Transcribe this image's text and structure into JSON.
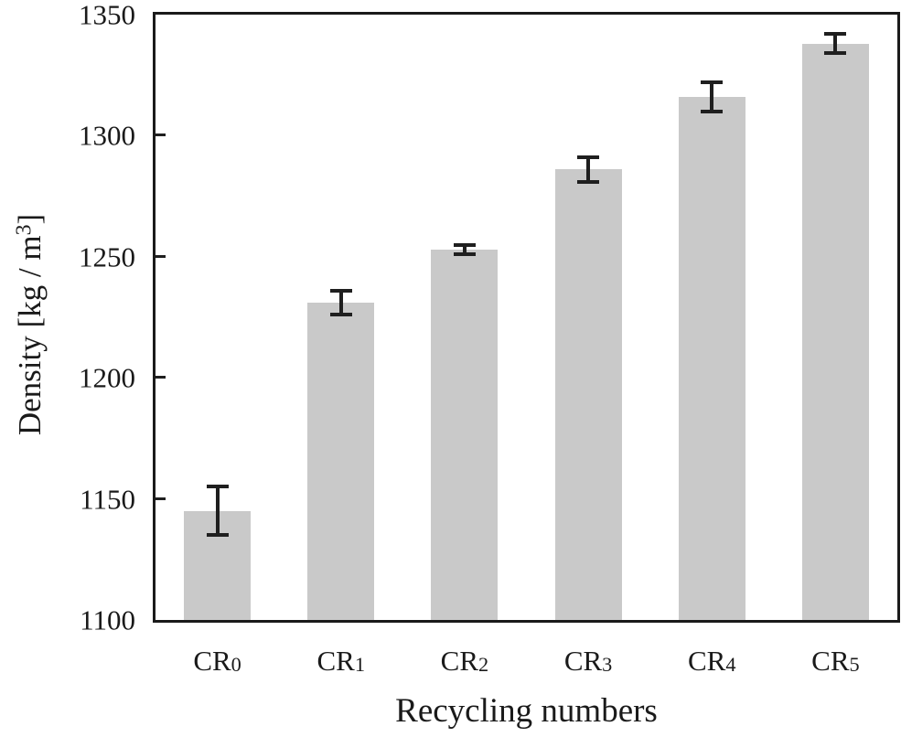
{
  "chart_data": {
    "type": "bar",
    "title": "",
    "xlabel": "Recycling numbers",
    "ylabel": "Density [kg / m³]",
    "ylabel_parts": {
      "pre": "Density [kg / m",
      "sup": "3",
      "post": "]"
    },
    "categories": [
      {
        "base": "CR",
        "sub": "0"
      },
      {
        "base": "CR",
        "sub": "1"
      },
      {
        "base": "CR",
        "sub": "2"
      },
      {
        "base": "CR",
        "sub": "3"
      },
      {
        "base": "CR",
        "sub": "4"
      },
      {
        "base": "CR",
        "sub": "5"
      }
    ],
    "values": [
      1145,
      1231,
      1253,
      1286,
      1316,
      1338
    ],
    "errors": [
      10,
      5,
      2,
      5,
      6,
      4
    ],
    "ylim": [
      1100,
      1350
    ],
    "yticks": [
      1100,
      1150,
      1200,
      1250,
      1300,
      1350
    ],
    "bar_color": "#c9c9c9",
    "axis_color": "#1a1a1a",
    "grid": false,
    "legend": "none"
  }
}
